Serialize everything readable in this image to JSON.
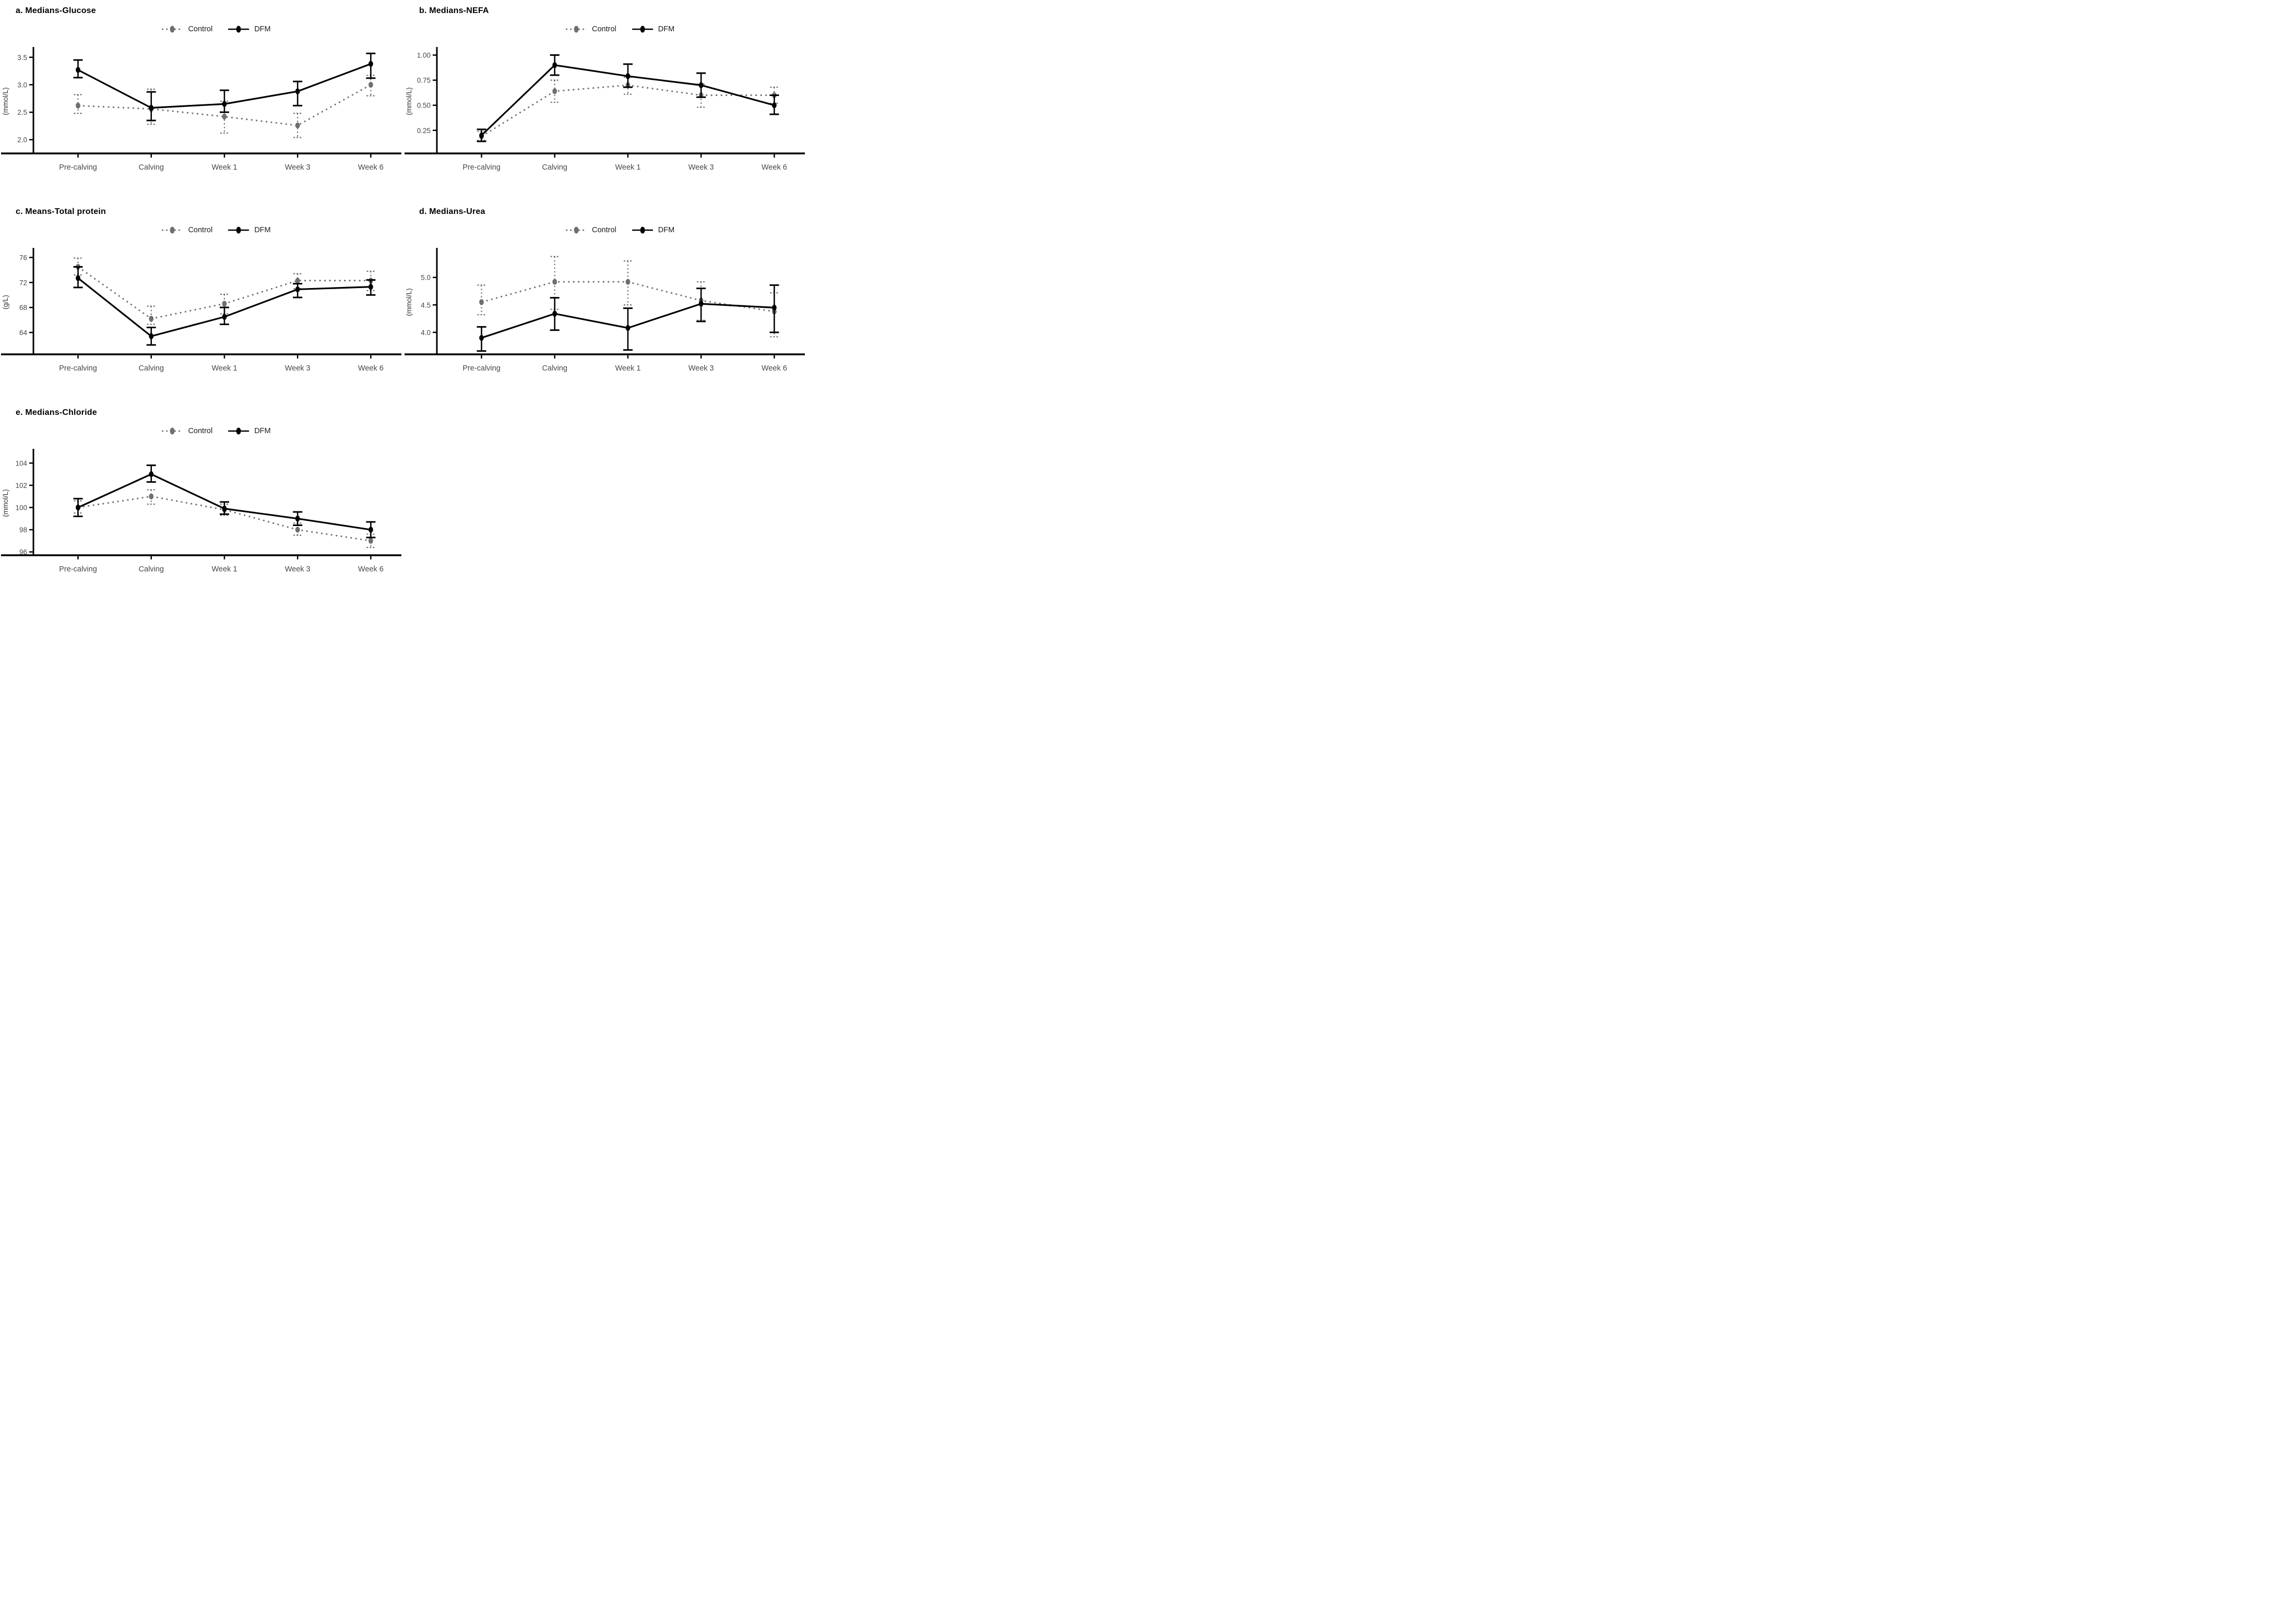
{
  "figure": {
    "legend": {
      "control_label": "Control",
      "dfm_label": "DFM"
    },
    "colors": {
      "control": "#6f6f6f",
      "dfm": "#000000",
      "axis": "#000000",
      "tick_text": "#46464e",
      "background": "#ffffff"
    },
    "categories": [
      "Pre-calving",
      "Calving",
      "Week 1",
      "Week 3",
      "Week 6"
    ]
  },
  "chart_data": [
    {
      "id": "glucose",
      "type": "line",
      "title": "a. Medians-Glucose",
      "xlabel": "",
      "ylabel": "(mmol/L)",
      "ylim": [
        1.75,
        3.65
      ],
      "ytick_values": [
        2.0,
        2.5,
        3.0,
        3.5
      ],
      "ytick_labels": [
        "2.0",
        "2.5",
        "3.0",
        "3.5"
      ],
      "grid": "off",
      "legend_position": "top",
      "categories": [
        "Pre-calving",
        "Calving",
        "Week 1",
        "Week 3",
        "Week 6"
      ],
      "series": [
        {
          "name": "Control",
          "style": "dotted",
          "color": "#6f6f6f",
          "values": [
            2.62,
            2.56,
            2.42,
            2.26,
            3.0
          ],
          "ci_low": [
            2.48,
            2.28,
            2.12,
            2.04,
            2.8
          ],
          "ci_high": [
            2.82,
            2.92,
            2.7,
            2.48,
            3.17
          ]
        },
        {
          "name": "DFM",
          "style": "solid",
          "color": "#000000",
          "values": [
            3.27,
            2.58,
            2.65,
            2.88,
            3.38
          ],
          "ci_low": [
            3.13,
            2.35,
            2.5,
            2.62,
            3.12
          ],
          "ci_high": [
            3.45,
            2.87,
            2.9,
            3.06,
            3.57
          ]
        }
      ]
    },
    {
      "id": "nefa",
      "type": "line",
      "title": "b. Medians-NEFA",
      "xlabel": "",
      "ylabel": "(mmol/L)",
      "ylim": [
        0.02,
        1.06
      ],
      "ytick_values": [
        0.25,
        0.5,
        0.75,
        1.0
      ],
      "ytick_labels": [
        "0.25",
        "0.50",
        "0.75",
        "1.00"
      ],
      "grid": "off",
      "legend_position": "top",
      "categories": [
        "Pre-calving",
        "Calving",
        "Week 1",
        "Week 3",
        "Week 6"
      ],
      "series": [
        {
          "name": "Control",
          "style": "dotted",
          "color": "#6f6f6f",
          "values": [
            0.19,
            0.64,
            0.7,
            0.6,
            0.6
          ],
          "ci_low": [
            0.15,
            0.53,
            0.61,
            0.48,
            0.52
          ],
          "ci_high": [
            0.24,
            0.75,
            0.78,
            0.71,
            0.68
          ]
        },
        {
          "name": "DFM",
          "style": "solid",
          "color": "#000000",
          "values": [
            0.2,
            0.9,
            0.79,
            0.7,
            0.5
          ],
          "ci_low": [
            0.14,
            0.8,
            0.68,
            0.58,
            0.41
          ],
          "ci_high": [
            0.26,
            1.0,
            0.91,
            0.82,
            0.6
          ]
        }
      ]
    },
    {
      "id": "total-protein",
      "type": "line",
      "title": "c. Means-Total protein",
      "xlabel": "",
      "ylabel": "(g/L)",
      "ylim": [
        60.5,
        77.2
      ],
      "ytick_values": [
        64,
        68,
        72,
        76
      ],
      "ytick_labels": [
        "64",
        "68",
        "72",
        "76"
      ],
      "grid": "off",
      "legend_position": "top",
      "categories": [
        "Pre-calving",
        "Calving",
        "Week 1",
        "Week 3",
        "Week 6"
      ],
      "series": [
        {
          "name": "Control",
          "style": "dotted",
          "color": "#6f6f6f",
          "values": [
            74.5,
            66.2,
            68.6,
            72.3,
            72.3
          ],
          "ci_low": [
            73.2,
            65.3,
            67.0,
            71.0,
            70.7
          ],
          "ci_high": [
            75.9,
            68.2,
            70.1,
            73.4,
            73.8
          ]
        },
        {
          "name": "DFM",
          "style": "solid",
          "color": "#000000",
          "values": [
            72.7,
            63.4,
            66.5,
            70.9,
            71.3
          ],
          "ci_low": [
            71.2,
            62.0,
            65.3,
            69.6,
            70.0
          ],
          "ci_high": [
            74.5,
            64.8,
            68.0,
            71.8,
            72.4
          ]
        }
      ]
    },
    {
      "id": "urea",
      "type": "line",
      "title": "d. Medians-Urea",
      "xlabel": "",
      "ylabel": "(mmol/L)",
      "ylim": [
        3.6,
        5.5
      ],
      "ytick_values": [
        4.0,
        4.5,
        5.0
      ],
      "ytick_labels": [
        "4.0",
        "4.5",
        "5.0"
      ],
      "grid": "off",
      "legend_position": "top",
      "categories": [
        "Pre-calving",
        "Calving",
        "Week 1",
        "Week 3",
        "Week 6"
      ],
      "series": [
        {
          "name": "Control",
          "style": "dotted",
          "color": "#6f6f6f",
          "values": [
            4.55,
            4.92,
            4.92,
            4.58,
            4.38
          ],
          "ci_low": [
            4.32,
            4.42,
            4.5,
            4.22,
            3.92
          ],
          "ci_high": [
            4.86,
            5.38,
            5.3,
            4.92,
            4.72
          ]
        },
        {
          "name": "DFM",
          "style": "solid",
          "color": "#000000",
          "values": [
            3.9,
            4.34,
            4.08,
            4.52,
            4.45
          ],
          "ci_low": [
            3.66,
            4.04,
            3.68,
            4.2,
            4.0
          ],
          "ci_high": [
            4.1,
            4.63,
            4.44,
            4.8,
            4.86
          ]
        }
      ]
    },
    {
      "id": "chloride",
      "type": "line",
      "title": "e. Medians-Chloride",
      "xlabel": "",
      "ylabel": "(mmol/L)",
      "ylim": [
        95.7,
        105.1
      ],
      "ytick_values": [
        96,
        98,
        100,
        102,
        104
      ],
      "ytick_labels": [
        "96",
        "98",
        "100",
        "102",
        "104"
      ],
      "grid": "off",
      "legend_position": "top",
      "categories": [
        "Pre-calving",
        "Calving",
        "Week 1",
        "Week 3",
        "Week 6"
      ],
      "series": [
        {
          "name": "Control",
          "style": "dotted",
          "color": "#6f6f6f",
          "values": [
            100.0,
            101.0,
            99.8,
            98.0,
            97.0
          ],
          "ci_low": [
            99.5,
            100.3,
            99.3,
            97.5,
            96.4
          ],
          "ci_high": [
            100.6,
            101.6,
            100.3,
            98.6,
            97.6
          ]
        },
        {
          "name": "DFM",
          "style": "solid",
          "color": "#000000",
          "values": [
            100.0,
            103.0,
            99.9,
            99.0,
            98.0
          ],
          "ci_low": [
            99.2,
            102.3,
            99.4,
            98.4,
            97.3
          ],
          "ci_high": [
            100.8,
            103.8,
            100.5,
            99.6,
            98.7
          ]
        }
      ]
    }
  ]
}
